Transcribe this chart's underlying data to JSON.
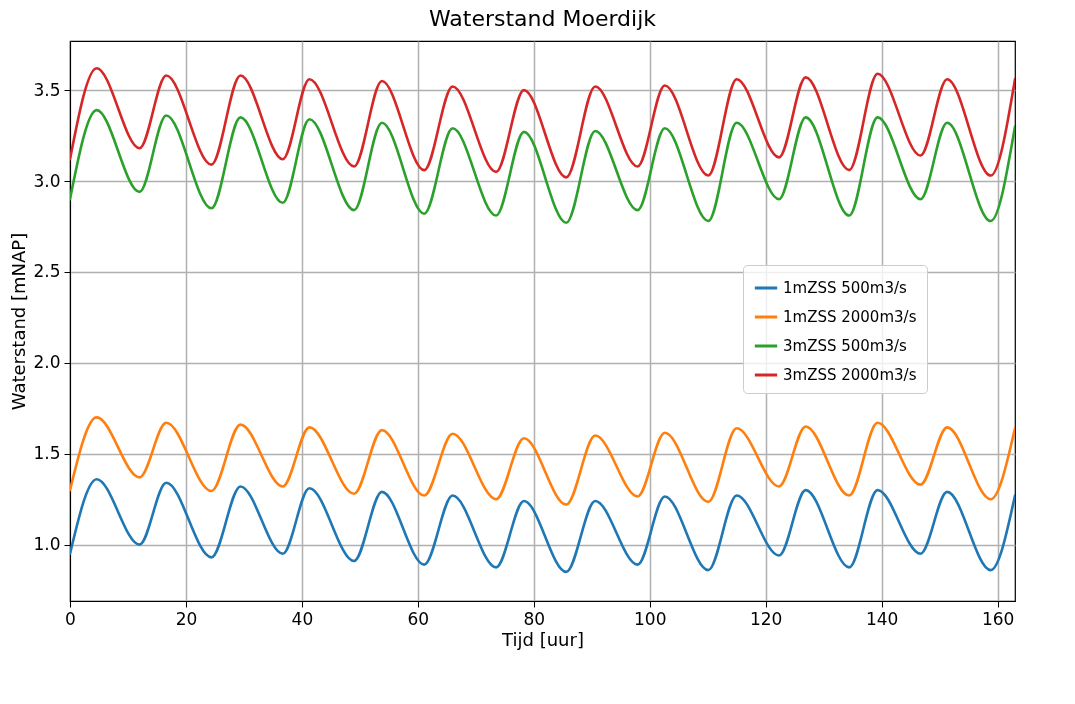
{
  "chart_data": {
    "type": "line",
    "title": "Waterstand Moerdijk",
    "xlabel": "Tijd [uur]",
    "ylabel": "Waterstand [mNAP]",
    "x": [
      0,
      4.6,
      12.0,
      16.6,
      24.4,
      29.4,
      36.7,
      41.3,
      49.0,
      53.8,
      61.1,
      66.0,
      73.5,
      78.3,
      85.6,
      90.6,
      97.9,
      102.6,
      110.1,
      115.0,
      122.3,
      126.9,
      134.4,
      139.3,
      146.7,
      151.3,
      158.8,
      163
    ],
    "series": [
      {
        "name": "1mZSS 500m3/s",
        "color": "#1f77b4",
        "values": [
          0.95,
          1.36,
          1.0,
          1.34,
          0.93,
          1.32,
          0.95,
          1.31,
          0.91,
          1.29,
          0.89,
          1.27,
          0.875,
          1.24,
          0.85,
          1.24,
          0.89,
          1.265,
          0.86,
          1.27,
          0.94,
          1.3,
          0.875,
          1.3,
          0.95,
          1.29,
          0.86,
          1.27
        ]
      },
      {
        "name": "1mZSS 2000m3/s",
        "color": "#ff7f0e",
        "values": [
          1.3,
          1.7,
          1.37,
          1.67,
          1.295,
          1.66,
          1.32,
          1.645,
          1.28,
          1.63,
          1.27,
          1.61,
          1.25,
          1.585,
          1.22,
          1.6,
          1.265,
          1.615,
          1.235,
          1.64,
          1.32,
          1.65,
          1.27,
          1.67,
          1.33,
          1.645,
          1.25,
          1.64
        ]
      },
      {
        "name": "3mZSS 500m3/s",
        "color": "#2ca02c",
        "values": [
          2.9,
          3.39,
          2.94,
          3.36,
          2.85,
          3.35,
          2.88,
          3.34,
          2.84,
          3.32,
          2.82,
          3.29,
          2.81,
          3.27,
          2.77,
          3.275,
          2.84,
          3.29,
          2.78,
          3.32,
          2.9,
          3.35,
          2.81,
          3.35,
          2.9,
          3.32,
          2.78,
          3.3
        ]
      },
      {
        "name": "3mZSS 2000m3/s",
        "color": "#d62728",
        "values": [
          3.12,
          3.62,
          3.18,
          3.58,
          3.09,
          3.58,
          3.12,
          3.56,
          3.08,
          3.55,
          3.06,
          3.52,
          3.05,
          3.5,
          3.02,
          3.52,
          3.08,
          3.525,
          3.03,
          3.56,
          3.13,
          3.57,
          3.06,
          3.59,
          3.14,
          3.56,
          3.03,
          3.56
        ]
      }
    ],
    "xlim": [
      0,
      163
    ],
    "ylim": [
      0.69,
      3.77
    ],
    "xticks": [
      0,
      20,
      40,
      60,
      80,
      100,
      120,
      140,
      160
    ],
    "yticks": [
      {
        "value": 1.0,
        "label": "1.0"
      },
      1.5,
      {
        "value": 2.0,
        "label": "2.0"
      },
      2.5,
      {
        "value": 3.0,
        "label": "3.0"
      },
      3.5
    ],
    "grid": true,
    "legend": "right",
    "line_style": "solid",
    "marker": "none"
  }
}
